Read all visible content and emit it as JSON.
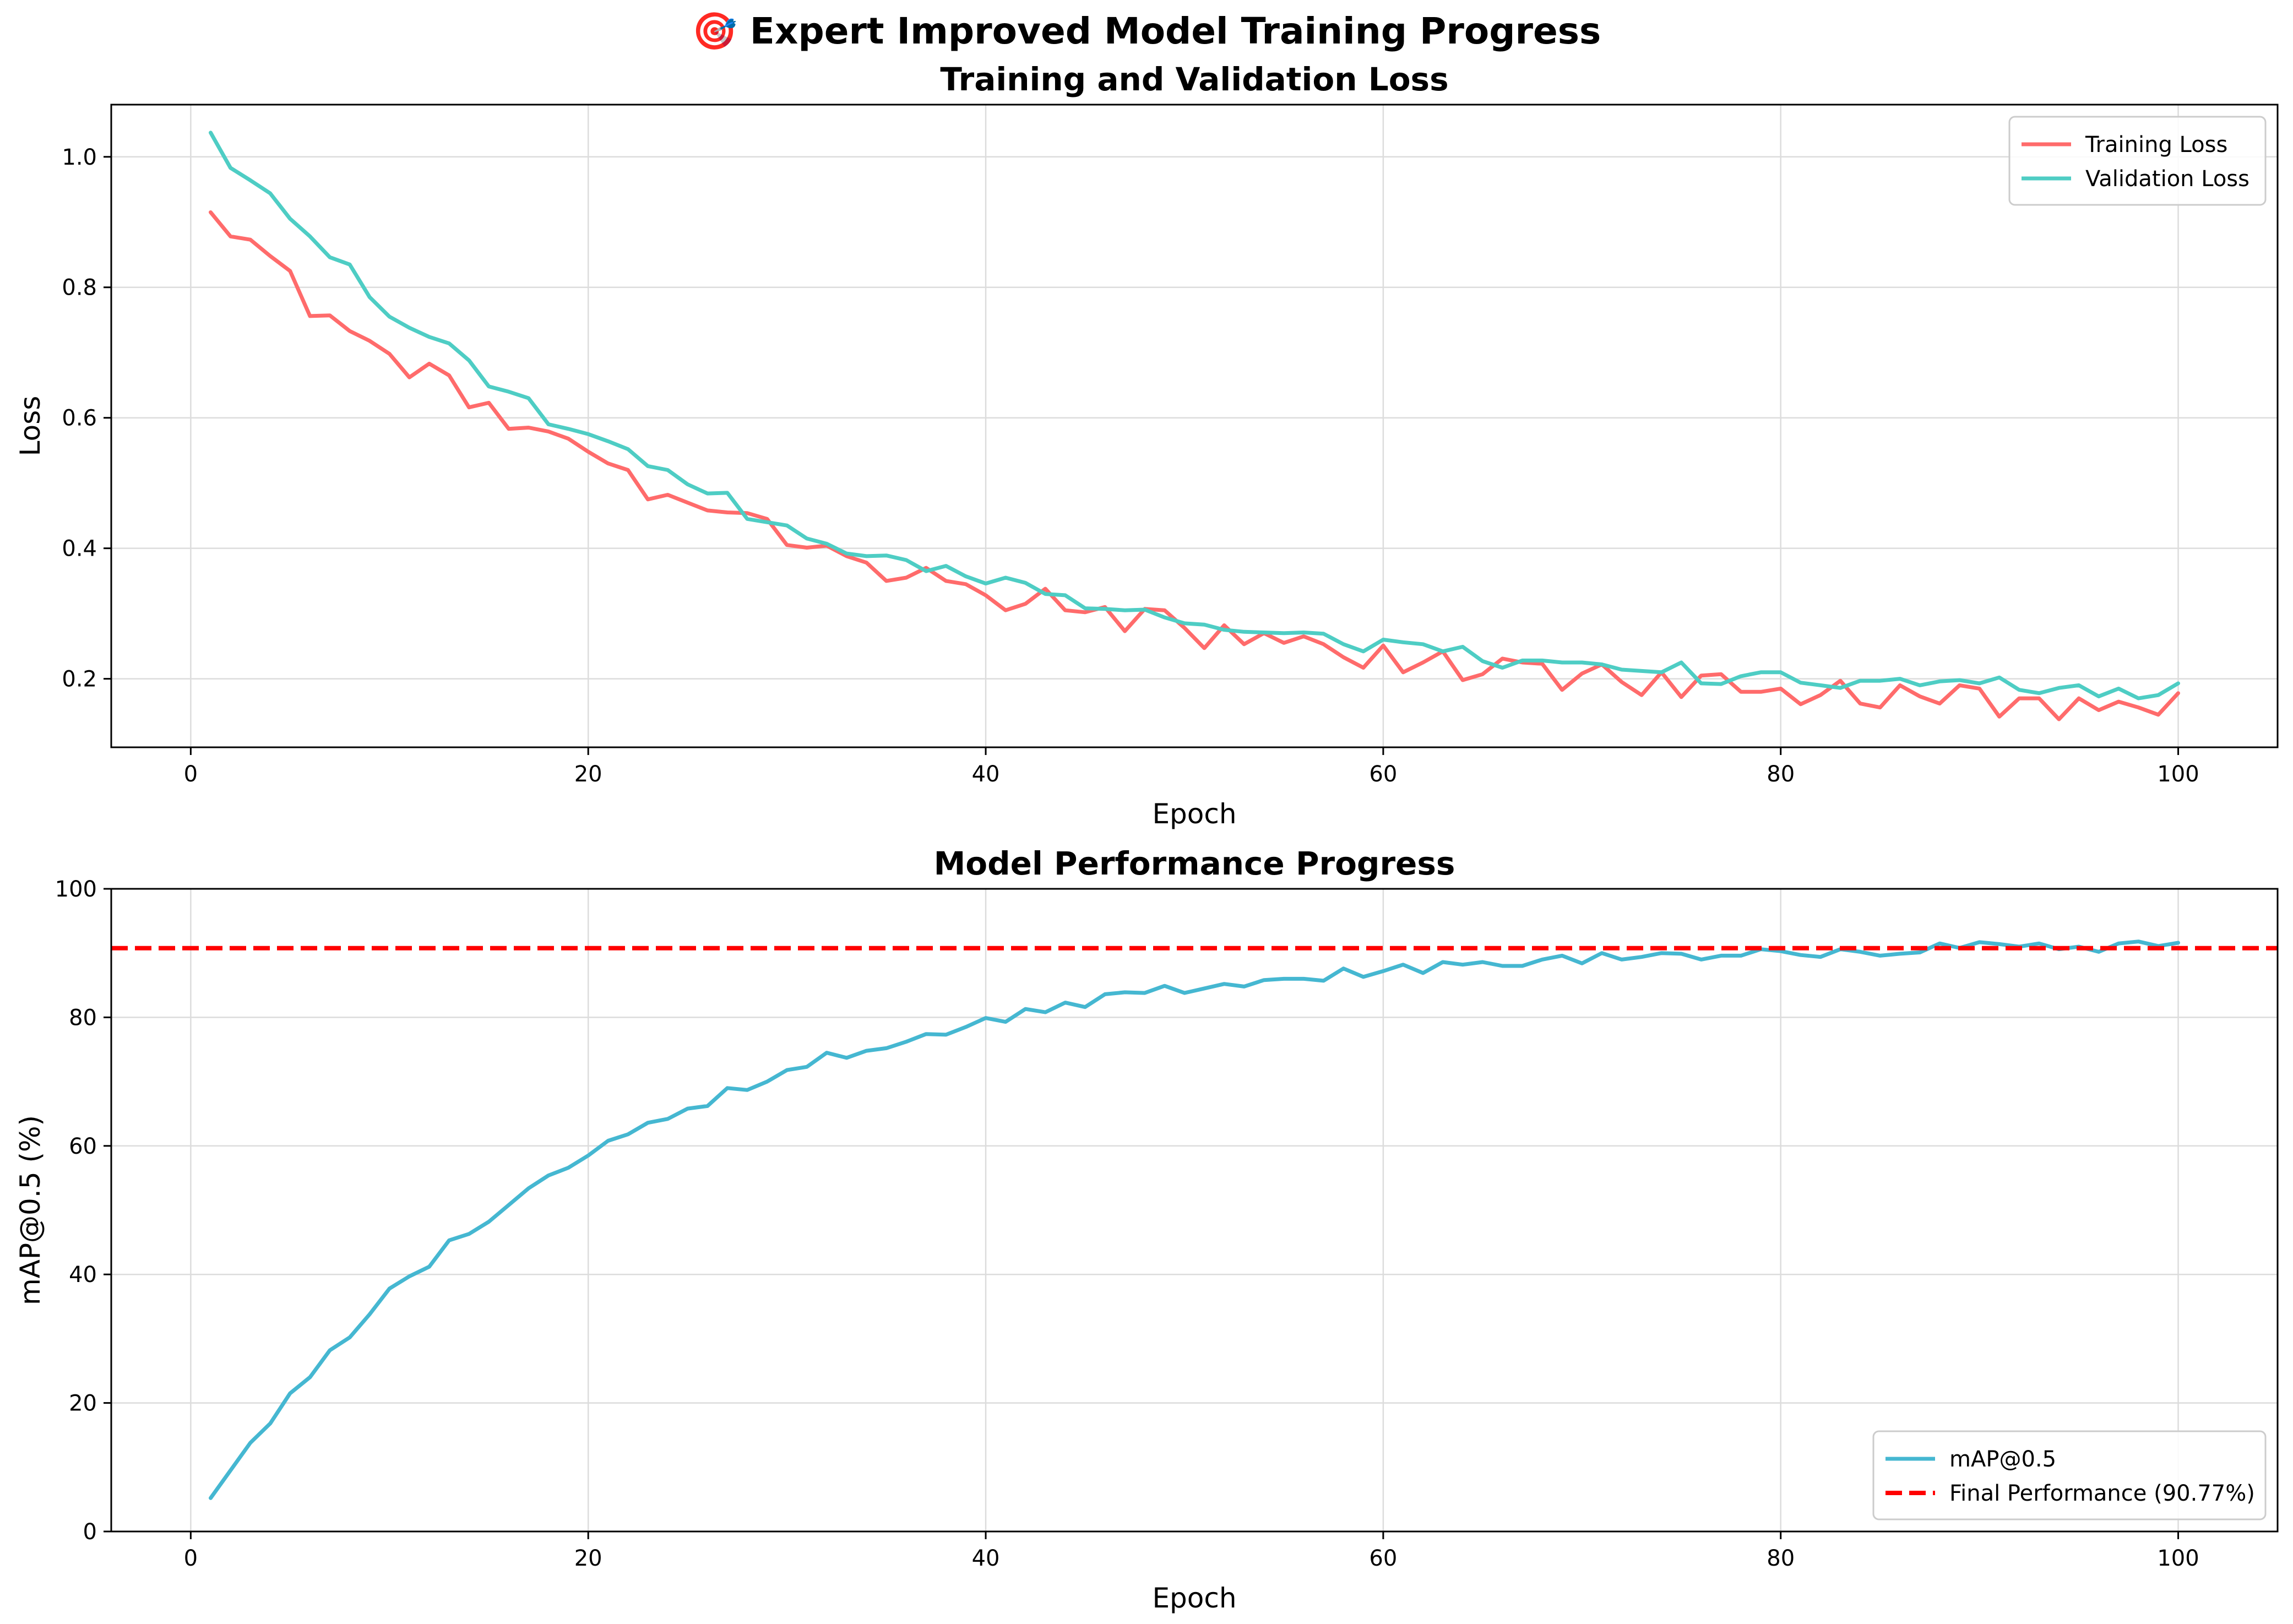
{
  "suptitle": "🎯 Expert Improved Model Training Progress",
  "chart_data": [
    {
      "type": "line",
      "title": "Training and Validation Loss",
      "xlabel": "Epoch",
      "ylabel": "Loss",
      "xlim": [
        -4,
        105
      ],
      "ylim": [
        0.095,
        1.08
      ],
      "xticks": [
        0,
        20,
        40,
        60,
        80,
        100
      ],
      "yticks": [
        0.2,
        0.4,
        0.6,
        0.8,
        1.0
      ],
      "ytick_labels": [
        "0.2",
        "0.4",
        "0.6",
        "0.8",
        "1.0"
      ],
      "grid": true,
      "legend_position": "top-right",
      "x_start": 1,
      "series": [
        {
          "name": "Training Loss",
          "color": "#ff6b6b",
          "values": [
            0.915,
            0.878,
            0.873,
            0.848,
            0.825,
            0.756,
            0.757,
            0.733,
            0.718,
            0.698,
            0.662,
            0.683,
            0.665,
            0.616,
            0.623,
            0.583,
            0.585,
            0.579,
            0.568,
            0.548,
            0.53,
            0.52,
            0.475,
            0.482,
            0.47,
            0.458,
            0.455,
            0.454,
            0.445,
            0.405,
            0.401,
            0.404,
            0.388,
            0.378,
            0.35,
            0.355,
            0.37,
            0.35,
            0.345,
            0.328,
            0.305,
            0.315,
            0.338,
            0.305,
            0.302,
            0.31,
            0.273,
            0.307,
            0.305,
            0.278,
            0.247,
            0.282,
            0.253,
            0.27,
            0.255,
            0.265,
            0.253,
            0.233,
            0.217,
            0.251,
            0.21,
            0.225,
            0.242,
            0.198,
            0.207,
            0.231,
            0.225,
            0.223,
            0.183,
            0.208,
            0.222,
            0.195,
            0.175,
            0.21,
            0.172,
            0.205,
            0.207,
            0.18,
            0.18,
            0.185,
            0.161,
            0.175,
            0.197,
            0.162,
            0.156,
            0.19,
            0.173,
            0.162,
            0.19,
            0.185,
            0.142,
            0.17,
            0.17,
            0.138,
            0.17,
            0.152,
            0.165,
            0.156,
            0.145,
            0.178
          ]
        },
        {
          "name": "Validation Loss",
          "color": "#4ecdc4",
          "values": [
            1.037,
            0.983,
            0.964,
            0.944,
            0.905,
            0.878,
            0.846,
            0.835,
            0.785,
            0.755,
            0.738,
            0.724,
            0.714,
            0.688,
            0.648,
            0.64,
            0.63,
            0.59,
            0.583,
            0.575,
            0.564,
            0.552,
            0.526,
            0.52,
            0.498,
            0.484,
            0.485,
            0.445,
            0.44,
            0.435,
            0.415,
            0.407,
            0.392,
            0.388,
            0.389,
            0.382,
            0.365,
            0.373,
            0.357,
            0.346,
            0.355,
            0.347,
            0.33,
            0.328,
            0.308,
            0.307,
            0.305,
            0.306,
            0.294,
            0.285,
            0.283,
            0.275,
            0.272,
            0.271,
            0.27,
            0.271,
            0.269,
            0.253,
            0.242,
            0.26,
            0.256,
            0.253,
            0.242,
            0.249,
            0.227,
            0.217,
            0.228,
            0.228,
            0.225,
            0.225,
            0.222,
            0.214,
            0.212,
            0.21,
            0.225,
            0.193,
            0.192,
            0.204,
            0.21,
            0.21,
            0.194,
            0.19,
            0.186,
            0.197,
            0.197,
            0.2,
            0.19,
            0.196,
            0.198,
            0.193,
            0.202,
            0.183,
            0.178,
            0.186,
            0.19,
            0.173,
            0.185,
            0.17,
            0.175,
            0.193
          ]
        }
      ]
    },
    {
      "type": "line",
      "title": "Model Performance Progress",
      "xlabel": "Epoch",
      "ylabel": "mAP@0.5 (%)",
      "xlim": [
        -4,
        105
      ],
      "ylim": [
        0,
        100
      ],
      "xticks": [
        0,
        20,
        40,
        60,
        80,
        100
      ],
      "yticks": [
        0,
        20,
        40,
        60,
        80,
        100
      ],
      "ytick_labels": [
        "0",
        "20",
        "40",
        "60",
        "80",
        "100"
      ],
      "grid": true,
      "legend_position": "bottom-right",
      "x_start": 1,
      "series": [
        {
          "name": "mAP@0.5",
          "color": "#45b7d1",
          "values": [
            5.2,
            9.5,
            13.8,
            16.8,
            21.5,
            24.0,
            28.2,
            30.2,
            33.8,
            37.8,
            39.7,
            41.2,
            45.3,
            46.3,
            48.2,
            50.8,
            53.4,
            55.4,
            56.6,
            58.5,
            60.8,
            61.8,
            63.6,
            64.2,
            65.8,
            66.2,
            69.0,
            68.7,
            70.0,
            71.8,
            72.3,
            74.5,
            73.7,
            74.8,
            75.2,
            76.2,
            77.4,
            77.3,
            78.5,
            79.9,
            79.3,
            81.3,
            80.8,
            82.3,
            81.6,
            83.6,
            83.9,
            83.8,
            84.9,
            83.8,
            84.5,
            85.2,
            84.8,
            85.8,
            86.0,
            86.0,
            85.7,
            87.6,
            86.3,
            87.2,
            88.2,
            86.9,
            88.6,
            88.2,
            88.6,
            88.0,
            88.0,
            89.0,
            89.6,
            88.4,
            90.0,
            89.0,
            89.4,
            90.0,
            89.9,
            89.0,
            89.6,
            89.6,
            90.6,
            90.3,
            89.7,
            89.4,
            90.6,
            90.2,
            89.6,
            89.9,
            90.1,
            91.5,
            90.8,
            91.7,
            91.4,
            91.0,
            91.5,
            90.6,
            91.0,
            90.2,
            91.5,
            91.8,
            91.1,
            91.6
          ]
        },
        {
          "name": "Final Performance (90.77%)",
          "color": "#ff0000",
          "style": "dashed",
          "y": 90.77
        }
      ]
    }
  ]
}
